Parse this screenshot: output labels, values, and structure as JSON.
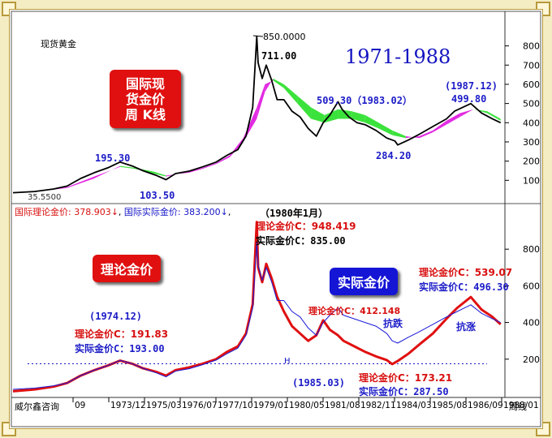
{
  "header": {
    "instrument": "现货黄金",
    "period": "1971-1988",
    "weekly_badge": [
      "国际现",
      "货金价",
      "周 K线"
    ],
    "status_theory_label": "国际理论金价: 378.903↓",
    "status_actual_label": "国际实际金价: 383.200↓"
  },
  "footer": {
    "brand": "威尔鑫咨询",
    "week_suffix": "周线"
  },
  "badges": {
    "theory": "理论金价",
    "actual": "实际金价"
  },
  "annotations": {
    "top_peak_max": "850.0000",
    "top_peak": "711.00",
    "top_low_start": "35.5500",
    "top_1974": "195.30",
    "top_1976": "103.50",
    "top_1983": "509.30（1983.02）",
    "top_1985": "284.20",
    "top_1987_date": "(1987.12)",
    "top_1987_val": "499.80",
    "b_1980_date": "（1980年1月）",
    "b_1980_theory": "理论金价C：948.419",
    "b_1980_actual": "实际金价C：835.00",
    "b_1974_date": "(1974.12)",
    "b_1974_theory": "理论金价C：191.83",
    "b_1974_actual": "实际金价C：193.00",
    "b_1982_theory": "理论金价C：412.148",
    "b_1985_date": "(1985.03)",
    "b_1985_theory": "理论金价C：173.21",
    "b_1985_actual": "实际金价C：287.50",
    "b_1987_theory": "理论金价C：539.07",
    "b_1987_actual": "实际金价C：496.30",
    "resist_fall": "抗跌",
    "resist_rise": "抗涨",
    "h_marker": "H"
  },
  "chart_data": [
    {
      "type": "line",
      "title": "1971-1988",
      "subtitle": "现货黄金",
      "yticks": [
        100,
        200,
        300,
        400,
        500,
        600,
        700,
        800
      ],
      "ylim": [
        0,
        870
      ],
      "xlim": [
        1971.0,
        1989.1
      ],
      "series": [
        {
          "name": "",
          "color": "#000000",
          "x": [
            1971.0,
            1971.8,
            1972.5,
            1973.0,
            1973.5,
            1974.0,
            1974.5,
            1974.95,
            1975.4,
            1975.8,
            1976.3,
            1976.65,
            1977.0,
            1977.5,
            1978.0,
            1978.5,
            1978.9,
            1979.3,
            1979.6,
            1979.85,
            1980.0,
            1980.05,
            1980.2,
            1980.35,
            1980.55,
            1980.75,
            1981.0,
            1981.3,
            1981.6,
            1981.9,
            1982.2,
            1982.45,
            1982.7,
            1983.0,
            1983.15,
            1983.4,
            1983.7,
            1984.0,
            1984.4,
            1984.8,
            1985.1,
            1985.2,
            1985.6,
            1986.0,
            1986.5,
            1987.0,
            1987.3,
            1987.9,
            1988.3,
            1988.7,
            1989.0
          ],
          "y": [
            35.55,
            42,
            55,
            70,
            110,
            140,
            165,
            195.3,
            175,
            150,
            125,
            103.5,
            135,
            148,
            170,
            195,
            230,
            260,
            330,
            480,
            850,
            711,
            630,
            700,
            620,
            520,
            520,
            460,
            430,
            370,
            330,
            400,
            440,
            509.3,
            470,
            430,
            400,
            390,
            360,
            320,
            305,
            284.2,
            310,
            340,
            380,
            420,
            460,
            499.8,
            450,
            420,
            400
          ]
        },
        {
          "name": "",
          "color": "#e020e0",
          "x": [
            1971.0,
            1972.0,
            1973.0,
            1974.0,
            1974.95,
            1975.5,
            1976.2,
            1976.65,
            1977.5,
            1978.0,
            1978.5,
            1979.0,
            1979.5,
            1980.0,
            1980.3,
            1980.6,
            1981.0,
            1981.5,
            1982.0,
            1982.5,
            1983.0,
            1983.5,
            1984.0,
            1984.5,
            1985.0,
            1985.5,
            1986.0,
            1986.5,
            1987.0,
            1987.5,
            1988.0,
            1988.5,
            1989.0
          ],
          "y": [
            38,
            45,
            65,
            120,
            170,
            160,
            135,
            120,
            145,
            165,
            190,
            230,
            320,
            480,
            600,
            620,
            580,
            500,
            420,
            400,
            420,
            420,
            400,
            370,
            335,
            320,
            330,
            360,
            410,
            450,
            470,
            450,
            410
          ]
        },
        {
          "name": "",
          "color": "#30e030",
          "x": [
            1971.0,
            1972.0,
            1973.0,
            1974.0,
            1974.95,
            1975.5,
            1976.2,
            1976.65,
            1977.5,
            1978.0,
            1978.5,
            1979.0,
            1979.5,
            1980.0,
            1980.3,
            1980.6,
            1981.0,
            1981.5,
            1982.0,
            1982.5,
            1983.0,
            1983.5,
            1984.0,
            1984.5,
            1985.0,
            1985.5,
            1986.0,
            1986.5,
            1987.0,
            1987.5,
            1988.0,
            1988.5,
            1989.0
          ],
          "y": [
            36,
            44,
            60,
            110,
            175,
            165,
            145,
            125,
            140,
            160,
            185,
            220,
            300,
            420,
            560,
            630,
            600,
            540,
            480,
            440,
            470,
            460,
            440,
            400,
            360,
            330,
            320,
            350,
            390,
            430,
            470,
            460,
            420
          ]
        }
      ]
    },
    {
      "type": "line",
      "title": "",
      "yticks": [
        200,
        400,
        600,
        800
      ],
      "ylim": [
        0,
        1000
      ],
      "xlim": [
        1971.0,
        1989.1
      ],
      "xtick_labels": [
        "09",
        "1973/12",
        "1975/03",
        "1976/07",
        "1977/10",
        "1979/01",
        "1980/05",
        "1981/08",
        "1982/11",
        "1984/03",
        "1985/08",
        "1986/09",
        "1988/01"
      ],
      "reference_line": {
        "y": 175,
        "label": "H",
        "style": "dotted"
      },
      "series": [
        {
          "name": "理论金价",
          "color": "#e01010",
          "x": [
            1971.0,
            1971.8,
            1972.5,
            1973.0,
            1973.5,
            1974.0,
            1974.5,
            1974.95,
            1975.4,
            1975.8,
            1976.3,
            1976.65,
            1977.0,
            1977.5,
            1978.0,
            1978.5,
            1978.9,
            1979.3,
            1979.6,
            1979.85,
            1980.0,
            1980.05,
            1980.2,
            1980.35,
            1980.55,
            1980.75,
            1981.0,
            1981.3,
            1981.6,
            1981.9,
            1982.2,
            1982.45,
            1982.7,
            1983.0,
            1983.2,
            1983.6,
            1984.0,
            1984.4,
            1984.8,
            1985.0,
            1985.2,
            1985.6,
            1986.0,
            1986.5,
            1987.0,
            1987.4,
            1987.9,
            1988.3,
            1988.7,
            1989.0
          ],
          "y": [
            25,
            35,
            50,
            70,
            110,
            140,
            165,
            191.83,
            175,
            150,
            130,
            110,
            140,
            155,
            175,
            200,
            240,
            270,
            340,
            500,
            948.419,
            700,
            620,
            720,
            640,
            540,
            460,
            380,
            340,
            300,
            330,
            412.148,
            360,
            330,
            300,
            270,
            240,
            215,
            195,
            173.21,
            190,
            230,
            280,
            340,
            420,
            480,
            539.07,
            470,
            430,
            390
          ]
        },
        {
          "name": "实际金价",
          "color": "#1a1ad8",
          "x": [
            1971.0,
            1971.8,
            1972.5,
            1973.0,
            1973.5,
            1974.0,
            1974.5,
            1974.95,
            1975.4,
            1975.8,
            1976.3,
            1976.65,
            1977.0,
            1977.5,
            1978.0,
            1978.5,
            1978.9,
            1979.3,
            1979.6,
            1979.85,
            1980.0,
            1980.05,
            1980.2,
            1980.35,
            1980.55,
            1980.75,
            1981.0,
            1981.3,
            1981.6,
            1981.9,
            1982.2,
            1982.45,
            1982.7,
            1983.0,
            1983.2,
            1983.6,
            1984.0,
            1984.4,
            1984.8,
            1985.0,
            1985.2,
            1985.6,
            1986.0,
            1986.5,
            1987.0,
            1987.4,
            1987.9,
            1988.3,
            1988.7,
            1989.0
          ],
          "y": [
            35.55,
            42,
            55,
            70,
            110,
            140,
            165,
            193,
            175,
            150,
            125,
            103.5,
            135,
            148,
            170,
            195,
            230,
            260,
            330,
            480,
            835,
            711,
            630,
            700,
            620,
            520,
            520,
            460,
            430,
            370,
            330,
            400,
            440,
            480,
            440,
            420,
            400,
            380,
            340,
            300,
            287.5,
            320,
            350,
            390,
            430,
            460,
            496.3,
            450,
            420,
            400
          ]
        }
      ]
    }
  ]
}
